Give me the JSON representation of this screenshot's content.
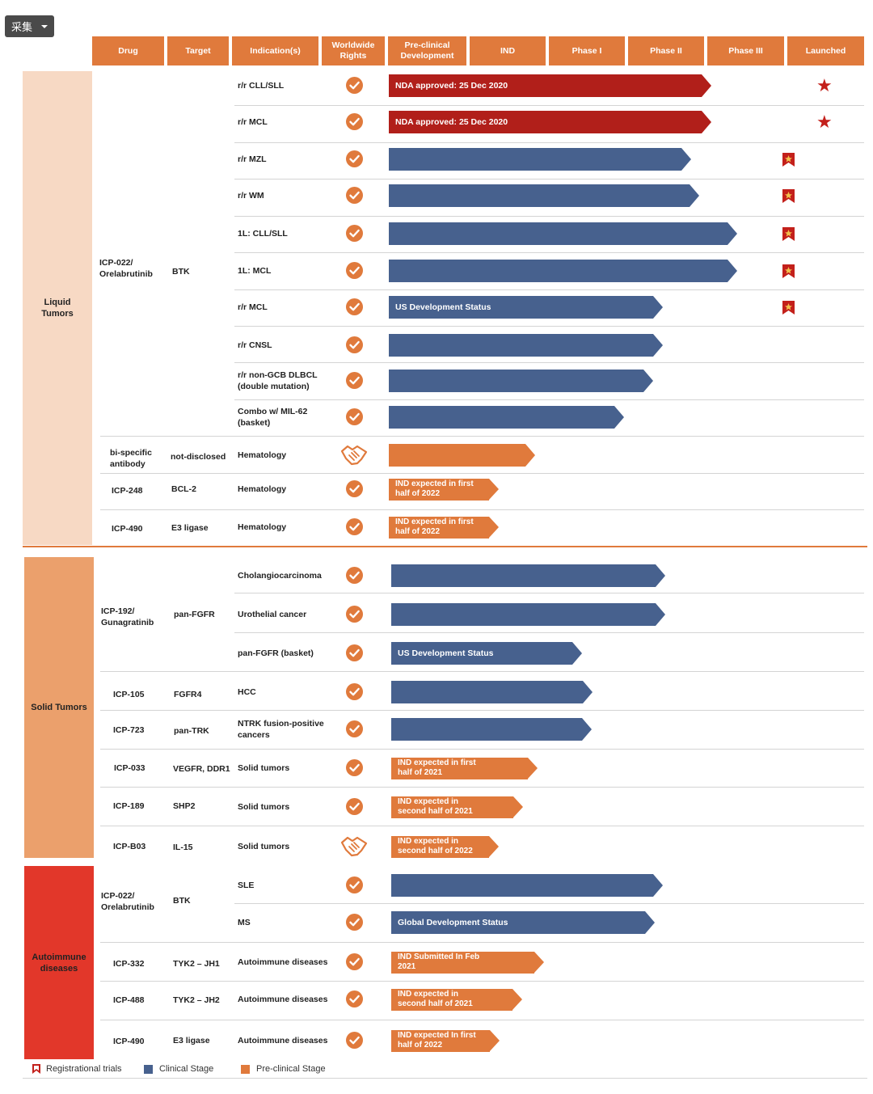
{
  "toolbar": {
    "collect_label": "采集"
  },
  "headers": [
    "Drug",
    "Target",
    "Indication(s)",
    "Worldwide Rights",
    "Pre-clinical Development",
    "IND",
    "Phase I",
    "Phase II",
    "Phase III",
    "Launched"
  ],
  "categories": [
    {
      "label": "Liquid Tumors",
      "color": "#f7d9c4"
    },
    {
      "label": "Solid Tumors",
      "color": "#eba06c"
    },
    {
      "label": "Autoimmune diseases",
      "color": "#e2372a"
    }
  ],
  "drugs": [
    {
      "drug": "ICP-022/ Orelabrutinib",
      "target": "BTK"
    },
    {
      "drug": "bi-specific antibody",
      "target": "not-disclosed"
    },
    {
      "drug": "ICP-248",
      "target": "BCL-2"
    },
    {
      "drug": "ICP-490",
      "target": "E3 ligase"
    },
    {
      "drug": "ICP-192/ Gunagratinib",
      "target": "pan-FGFR"
    },
    {
      "drug": "ICP-105",
      "target": "FGFR4"
    },
    {
      "drug": "ICP-723",
      "target": "pan-TRK"
    },
    {
      "drug": "ICP-033",
      "target": "VEGFR, DDR1"
    },
    {
      "drug": "ICP-189",
      "target": "SHP2"
    },
    {
      "drug": "ICP-B03",
      "target": "IL-15"
    },
    {
      "drug": "ICP-022/ Orelabrutinib",
      "target": "BTK"
    },
    {
      "drug": "ICP-332",
      "target": "TYK2 – JH1"
    },
    {
      "drug": "ICP-488",
      "target": "TYK2 – JH2"
    },
    {
      "drug": "ICP-490",
      "target": "E3 ligase"
    }
  ],
  "rows": [
    {
      "indication": "r/r CLL/SLL",
      "rights": "check",
      "bar_type": "approved",
      "bar_label": "NDA approved: 25 Dec 2020",
      "marker": "star"
    },
    {
      "indication": "r/r MCL",
      "rights": "check",
      "bar_type": "approved",
      "bar_label": "NDA approved: 25 Dec 2020",
      "marker": "star"
    },
    {
      "indication": "r/r MZL",
      "rights": "check",
      "bar_type": "clinical",
      "bar_label": "",
      "marker": "registrational"
    },
    {
      "indication": "r/r WM",
      "rights": "check",
      "bar_type": "clinical",
      "bar_label": "",
      "marker": "registrational"
    },
    {
      "indication": "1L: CLL/SLL",
      "rights": "check",
      "bar_type": "clinical",
      "bar_label": "",
      "marker": "registrational"
    },
    {
      "indication": "1L: MCL",
      "rights": "check",
      "bar_type": "clinical",
      "bar_label": "",
      "marker": "registrational"
    },
    {
      "indication": "r/r MCL",
      "rights": "check",
      "bar_type": "clinical",
      "bar_label": "US Development Status",
      "marker": "registrational"
    },
    {
      "indication": "r/r CNSL",
      "rights": "check",
      "bar_type": "clinical",
      "bar_label": "",
      "marker": ""
    },
    {
      "indication": "r/r non-GCB DLBCL (double mutation)",
      "rights": "check",
      "bar_type": "clinical",
      "bar_label": "",
      "marker": ""
    },
    {
      "indication": "Combo w/ MIL-62 (basket)",
      "rights": "check",
      "bar_type": "clinical",
      "bar_label": "",
      "marker": ""
    },
    {
      "indication": "Hematology",
      "rights": "partnership",
      "bar_type": "preclinical",
      "bar_label": "",
      "marker": ""
    },
    {
      "indication": "Hematology",
      "rights": "check",
      "bar_type": "preclinical",
      "bar_label": "IND expected in first half of 2022",
      "marker": ""
    },
    {
      "indication": "Hematology",
      "rights": "check",
      "bar_type": "preclinical",
      "bar_label": "IND expected in first half of 2022",
      "marker": ""
    },
    {
      "indication": "Cholangiocarcinoma",
      "rights": "check",
      "bar_type": "clinical",
      "bar_label": "",
      "marker": ""
    },
    {
      "indication": "Urothelial cancer",
      "rights": "check",
      "bar_type": "clinical",
      "bar_label": "",
      "marker": ""
    },
    {
      "indication": "pan-FGFR (basket)",
      "rights": "check",
      "bar_type": "clinical",
      "bar_label": "US Development Status",
      "marker": ""
    },
    {
      "indication": "HCC",
      "rights": "check",
      "bar_type": "clinical",
      "bar_label": "",
      "marker": ""
    },
    {
      "indication": "NTRK fusion-positive cancers",
      "rights": "check",
      "bar_type": "clinical",
      "bar_label": "",
      "marker": ""
    },
    {
      "indication": "Solid tumors",
      "rights": "check",
      "bar_type": "preclinical",
      "bar_label": "IND expected in first half of 2021",
      "marker": ""
    },
    {
      "indication": "Solid tumors",
      "rights": "check",
      "bar_type": "preclinical",
      "bar_label": "IND expected in second half of 2021",
      "marker": ""
    },
    {
      "indication": "Solid tumors",
      "rights": "partnership",
      "bar_type": "preclinical",
      "bar_label": "IND expected in second half of 2022",
      "marker": ""
    },
    {
      "indication": "SLE",
      "rights": "check",
      "bar_type": "clinical",
      "bar_label": "",
      "marker": ""
    },
    {
      "indication": "MS",
      "rights": "check",
      "bar_type": "clinical",
      "bar_label": "Global Development Status",
      "marker": ""
    },
    {
      "indication": "Autoimmune diseases",
      "rights": "check",
      "bar_type": "preclinical",
      "bar_label": "IND Submitted In Feb 2021",
      "marker": ""
    },
    {
      "indication": "Autoimmune diseases",
      "rights": "check",
      "bar_type": "preclinical",
      "bar_label": "IND expected in second half of 2021",
      "marker": ""
    },
    {
      "indication": "Autoimmune diseases",
      "rights": "check",
      "bar_type": "preclinical",
      "bar_label": "IND expected In first half of 2022",
      "marker": ""
    }
  ],
  "legend": [
    {
      "label": "Registrational trials",
      "icon": "flag-icon"
    },
    {
      "label": "Clinical Stage",
      "color": "#47618e"
    },
    {
      "label": "Pre-clinical Stage",
      "color": "#e07a3c"
    }
  ],
  "colors": {
    "header": "#e07a3c",
    "clinical": "#47618e",
    "approved": "#b11f1a",
    "preclinical": "#e07a3c"
  }
}
